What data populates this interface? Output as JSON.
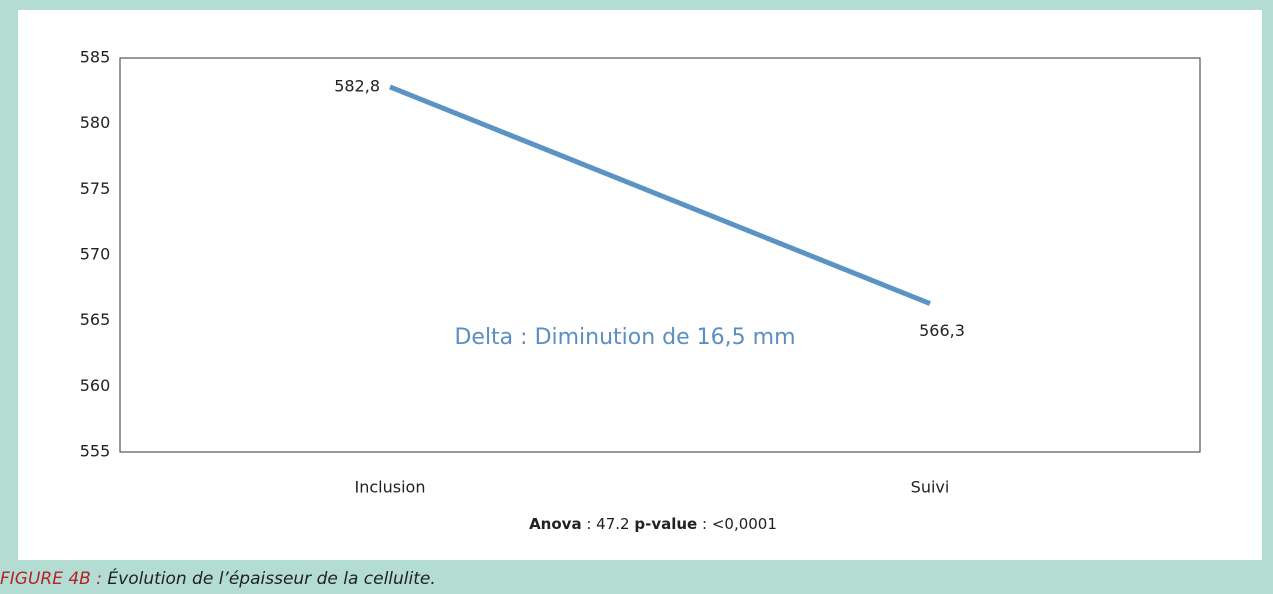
{
  "chart_data": {
    "type": "line",
    "categories": [
      "Inclusion",
      "Suivi"
    ],
    "series": [
      {
        "name": null,
        "color": "#5b93c5",
        "values": [
          582.8,
          566.3
        ],
        "value_labels": [
          "582,8",
          "566,3"
        ]
      }
    ],
    "ylim": [
      555,
      585
    ],
    "yticks": [
      555,
      560,
      565,
      570,
      575,
      580,
      585
    ],
    "annotation": "Delta : Diminution de 16,5 mm",
    "footnote": {
      "anova_label": "Anova",
      "anova_value": ": 47.2",
      "pvalue_label": "p-value",
      "pvalue_value": ": <0,0001"
    },
    "caption": {
      "label": "FIGURE 4B :",
      "text": "Évolution de l’épaisseur de la cellulite."
    }
  }
}
